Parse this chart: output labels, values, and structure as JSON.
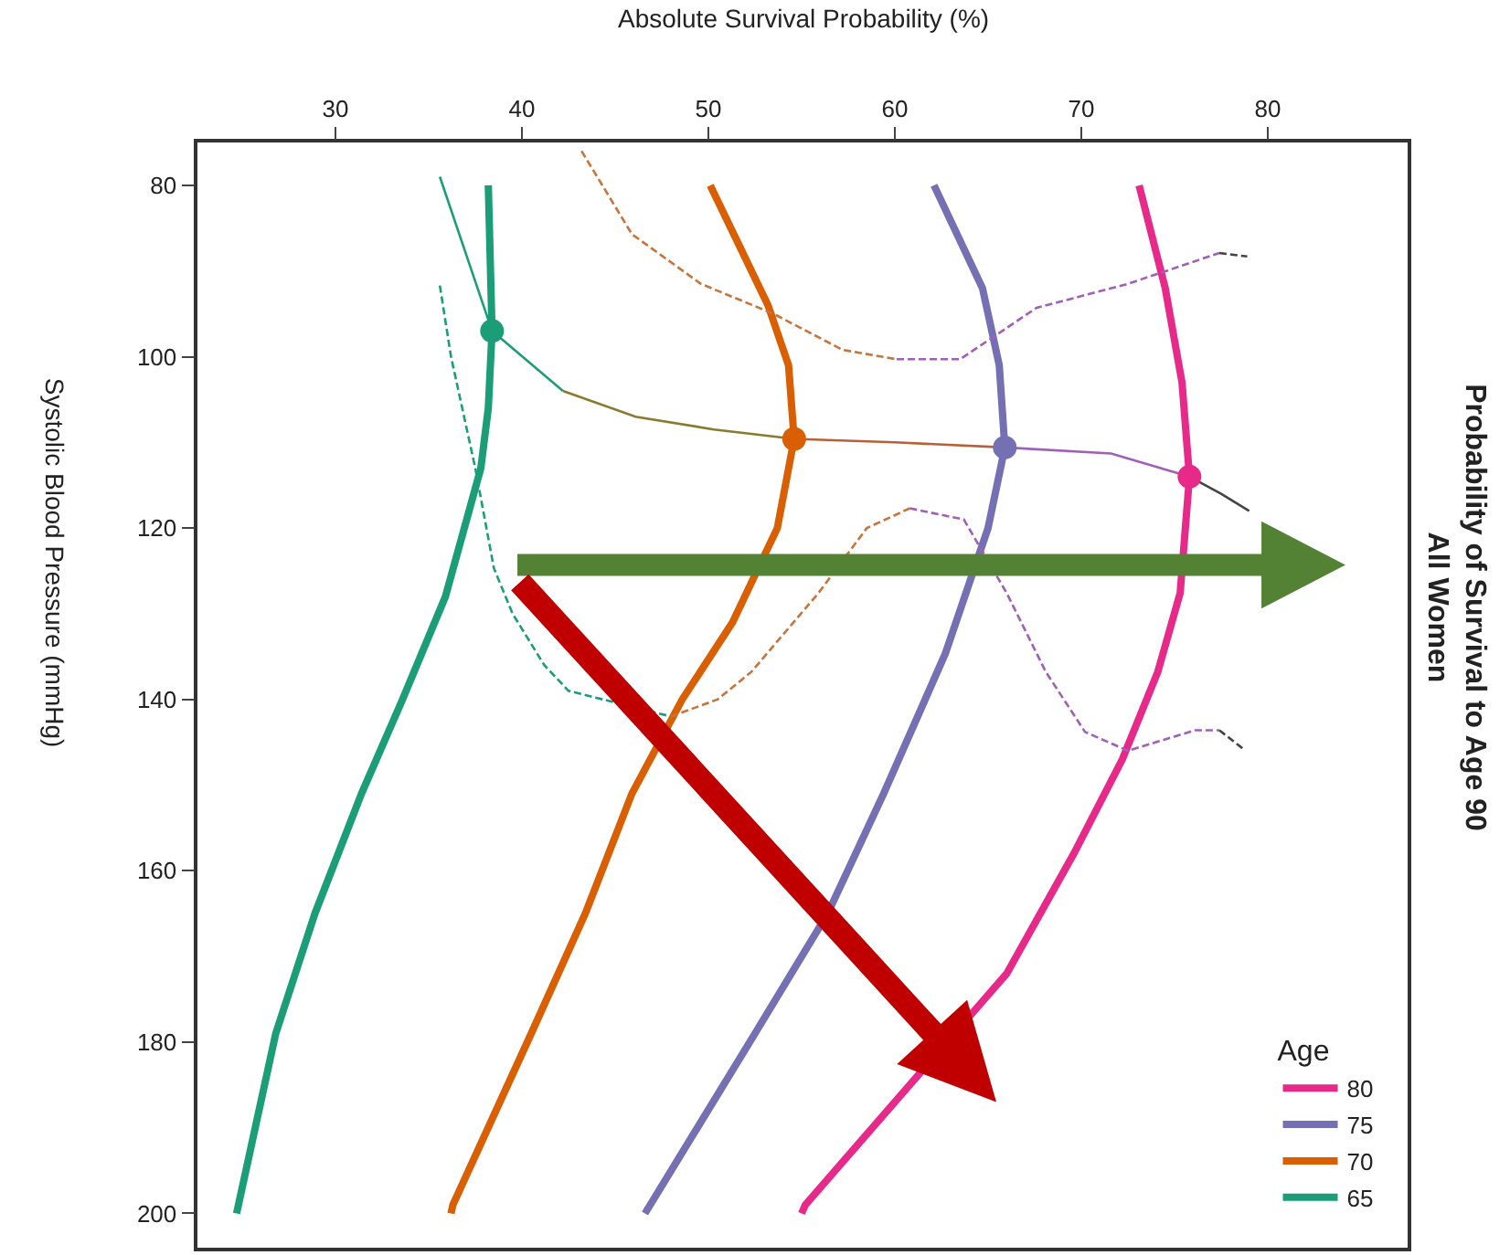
{
  "chart_data": {
    "type": "line",
    "title": "Probability of Survival to Age 90\nAll Women",
    "xlabel": "Absolute Survival Probability (%)",
    "ylabel": "Systolic Blood Pressure (mmHg)",
    "legend_title": "Age",
    "xlim": [
      22.6,
      87.5
    ],
    "xticks": [
      30,
      40,
      50,
      60,
      70,
      80
    ],
    "ylim": [
      204,
      75
    ],
    "yticks": [
      80,
      100,
      120,
      140,
      160,
      180,
      200
    ],
    "grid": false,
    "legend": "bottom right",
    "series": [
      {
        "name": "80",
        "color": "#e7298a",
        "line_style": "solid",
        "values": [
          80,
          92,
          103,
          114,
          127.6,
          136.8,
          147,
          158,
          172,
          186,
          199,
          200
        ],
        "x": [
          73.1,
          74.5,
          75.4,
          75.8,
          75.3,
          74.1,
          72.2,
          69.6,
          66.0,
          60.4,
          55.2,
          55.0
        ]
      },
      {
        "name": "75",
        "color": "#7570b3",
        "line_style": "solid",
        "values": [
          80,
          92,
          101,
          110.6,
          120,
          134.7,
          151,
          165,
          179,
          200
        ],
        "x": [
          62.1,
          64.7,
          65.6,
          65.9,
          65.0,
          62.7,
          59.4,
          56.4,
          52.5,
          46.6
        ]
      },
      {
        "name": "70",
        "color": "#d95f02",
        "line_style": "solid",
        "values": [
          80,
          94,
          101,
          109.6,
          120,
          131,
          140,
          151,
          165,
          179,
          199,
          200
        ],
        "x": [
          50.1,
          53.2,
          54.3,
          54.6,
          53.7,
          51.3,
          48.6,
          45.9,
          43.4,
          40.5,
          36.3,
          36.2
        ]
      },
      {
        "name": "65",
        "color": "#1b9e77",
        "line_style": "solid",
        "values": [
          80,
          97,
          106,
          113,
          128,
          140,
          151,
          165,
          179,
          199,
          200
        ],
        "x": [
          38.2,
          38.4,
          38.2,
          37.8,
          35.9,
          33.6,
          31.4,
          28.9,
          26.8,
          24.8,
          24.7
        ]
      },
      {
        "type": "line",
        "color": "#1b9e77",
        "line_style": "solid",
        "values": [
          79,
          97,
          104
        ],
        "x": [
          35.6,
          38.4,
          42.2
        ]
      },
      {
        "type": "line",
        "color": "#8a7a30",
        "line_style": "solid",
        "values": [
          104,
          107,
          108.5,
          109.6
        ],
        "x": [
          42.2,
          46.1,
          50.3,
          54.6
        ]
      },
      {
        "type": "line",
        "color": "#b8603a",
        "line_style": "solid",
        "values": [
          109.6,
          110,
          110.6
        ],
        "x": [
          54.6,
          60.0,
          65.9
        ]
      },
      {
        "type": "line",
        "color": "#a060b8",
        "line_style": "solid",
        "values": [
          110.6,
          111.3,
          114
        ],
        "x": [
          65.9,
          71.6,
          75.8
        ]
      },
      {
        "type": "line",
        "color": "#444444",
        "line_style": "solid",
        "values": [
          114,
          116,
          118
        ],
        "x": [
          75.8,
          77.5,
          79.0
        ]
      },
      {
        "type": "line",
        "color": "#1b9e77",
        "line_style": "dashed",
        "values": [
          91.7,
          100,
          113,
          124.7,
          130,
          136,
          139,
          142
        ],
        "x": [
          35.6,
          36.2,
          37.5,
          38.5,
          39.5,
          41.2,
          42.5,
          48.0
        ]
      },
      {
        "type": "line",
        "color": "#c8743a",
        "line_style": "dashed",
        "values": [
          142,
          140,
          136.8,
          127.6,
          120,
          117.7
        ],
        "x": [
          48.0,
          50.5,
          52.3,
          55.9,
          58.5,
          60.8
        ]
      },
      {
        "type": "line",
        "color": "#a060b8",
        "line_style": "dashed",
        "values": [
          117.7,
          119,
          127.6,
          136.8,
          143.8,
          146,
          143.6,
          143.6
        ],
        "x": [
          60.8,
          63.7,
          66.0,
          68.1,
          70.2,
          72.5,
          76.1,
          77.4
        ]
      },
      {
        "type": "line",
        "color": "#444444",
        "line_style": "dashed",
        "values": [
          143.6,
          145.8
        ],
        "x": [
          77.4,
          78.7
        ]
      },
      {
        "type": "line",
        "color": "#c8743a",
        "line_style": "dashed",
        "values": [
          76,
          85.7,
          91.5,
          95,
          99.2,
          100.3
        ],
        "x": [
          43.2,
          45.9,
          49.6,
          53.5,
          57.2,
          60.1
        ]
      },
      {
        "type": "line",
        "color": "#a060b8",
        "line_style": "dashed",
        "values": [
          100.3,
          100.3,
          94.3,
          91.5,
          87.9
        ],
        "x": [
          60.1,
          63.5,
          67.6,
          72.5,
          77.4
        ]
      },
      {
        "type": "line",
        "color": "#444444",
        "line_style": "dashed",
        "values": [
          87.9,
          88.3
        ],
        "x": [
          77.4,
          78.9
        ]
      },
      {
        "type": "scatter",
        "marker": "circle",
        "colors": [
          "#1b9e77",
          "#d95f02",
          "#7570b3",
          "#e7298a"
        ],
        "values": [
          97,
          109.6,
          110.6,
          114
        ],
        "x": [
          38.4,
          54.6,
          65.9,
          75.8
        ]
      }
    ]
  }
}
